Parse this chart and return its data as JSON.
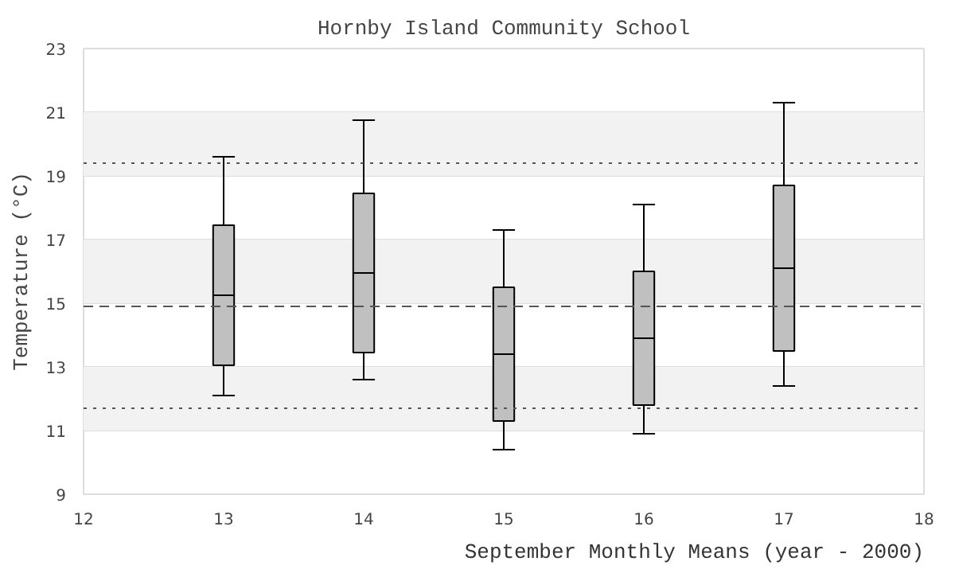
{
  "chart_data": {
    "type": "box",
    "title": "Hornby Island Community School",
    "xlabel": "September Monthly Means (year - 2000)",
    "ylabel": "Temperature (°C)",
    "x": [
      13,
      14,
      15,
      16,
      17
    ],
    "color": "#c0c0c0",
    "boxes": [
      {
        "low": 12.1,
        "q1": 13.05,
        "median": 15.25,
        "q3": 17.45,
        "high": 19.6
      },
      {
        "low": 12.6,
        "q1": 13.45,
        "median": 15.95,
        "q3": 18.45,
        "high": 20.75
      },
      {
        "low": 10.4,
        "q1": 11.3,
        "median": 13.4,
        "q3": 15.5,
        "high": 17.3
      },
      {
        "low": 10.9,
        "q1": 11.8,
        "median": 13.9,
        "q3": 16.0,
        "high": 18.1
      },
      {
        "low": 12.4,
        "q1": 13.5,
        "median": 16.1,
        "q3": 18.7,
        "high": 21.3
      }
    ],
    "xlim": [
      12,
      18
    ],
    "xticks": [
      12,
      13,
      14,
      15,
      16,
      17,
      18
    ],
    "ylim": [
      9,
      23
    ],
    "yticks": [
      9,
      11,
      13,
      15,
      17,
      19,
      21,
      23
    ],
    "grid": "y",
    "ref_lines": [
      {
        "axis": "y",
        "value": 14.9,
        "line_style": "dashed",
        "color": "#555555"
      },
      {
        "axis": "y",
        "value": 19.4,
        "line_style": "dotted",
        "color": "#555555"
      },
      {
        "axis": "y",
        "value": 11.7,
        "line_style": "dotted",
        "color": "#555555"
      }
    ],
    "bands": [
      {
        "axis": "y",
        "from": 11,
        "to": 13,
        "color": "#f2f2f2"
      },
      {
        "axis": "y",
        "from": 15,
        "to": 17,
        "color": "#f2f2f2"
      },
      {
        "axis": "y",
        "from": 19,
        "to": 21,
        "color": "#f2f2f2"
      }
    ]
  }
}
